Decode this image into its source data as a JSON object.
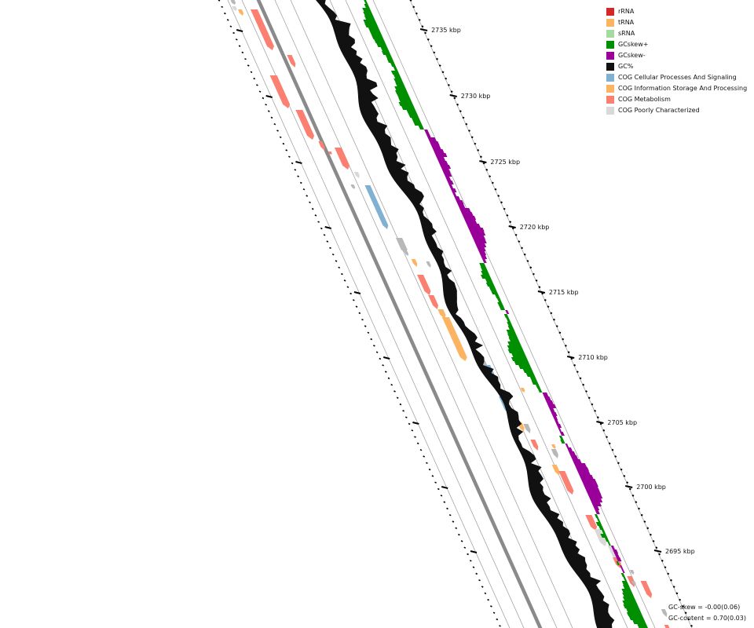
{
  "legend": [
    {
      "label": "rRNA",
      "color": "#d62728",
      "icon": "rrna-swatch-icon"
    },
    {
      "label": "tRNA",
      "color": "#fdb462",
      "icon": "trna-swatch-icon"
    },
    {
      "label": "sRNA",
      "color": "#a6dba0",
      "icon": "srna-swatch-icon"
    },
    {
      "label": "GCskew+",
      "color": "#008f00",
      "icon": "gcskew-positive-swatch-icon"
    },
    {
      "label": "GCskew-",
      "color": "#990099",
      "icon": "gcskew-negative-swatch-icon"
    },
    {
      "label": "GC%",
      "color": "#111111",
      "icon": "gc-content-swatch-icon"
    },
    {
      "label": "COG Cellular Processes And Signaling",
      "color": "#80b1d3",
      "icon": "cog-cellular-swatch-icon"
    },
    {
      "label": "COG Information Storage And Processing",
      "color": "#fdb462",
      "icon": "cog-information-swatch-icon"
    },
    {
      "label": "COG Metabolism",
      "color": "#fb8072",
      "icon": "cog-metabolism-swatch-icon"
    },
    {
      "label": "COG Poorly Characterized",
      "color": "#d9d9d9",
      "icon": "cog-poorly-characterized-swatch-icon"
    }
  ],
  "ruler": {
    "labels": [
      "2735 kbp",
      "2730 kbp",
      "2725 kbp",
      "2720 kbp",
      "2715 kbp",
      "2710 kbp",
      "2705 kbp",
      "2700 kbp",
      "2695 kbp"
    ]
  },
  "stats": {
    "gc_skew": "GC-skew = -0.00(0.06)",
    "gc_content": "GC-content = 0.70(0.03)"
  },
  "colors": {
    "backbone": "#8a8a8a",
    "ring": "#9a9a9a",
    "gc_content": "#111111",
    "skew_positive": "#008f00",
    "skew_negative": "#990099",
    "unassigned_gene": "#b8b8b8"
  }
}
